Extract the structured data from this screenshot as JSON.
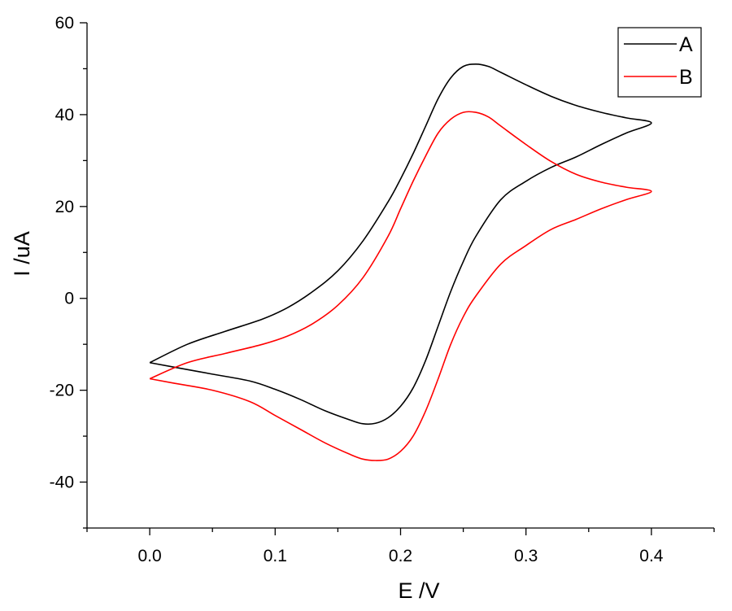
{
  "chart_data": {
    "type": "line",
    "title": "",
    "xlabel": "E /V",
    "ylabel": "I /uA",
    "xlim": [
      -0.05,
      0.45
    ],
    "ylim": [
      -50,
      60
    ],
    "xticks": [
      0.0,
      0.1,
      0.2,
      0.3,
      0.4
    ],
    "xtick_labels": [
      "0.0",
      "0.1",
      "0.2",
      "0.3",
      "0.4"
    ],
    "yticks": [
      -40,
      -20,
      0,
      20,
      40,
      60
    ],
    "ytick_labels": [
      "-40",
      "-20",
      "0",
      "20",
      "40",
      "60"
    ],
    "grid": false,
    "legend": "top-right",
    "series": [
      {
        "name": "A",
        "color": "#000000",
        "x": [
          0.0,
          0.03,
          0.06,
          0.09,
          0.11,
          0.13,
          0.15,
          0.17,
          0.19,
          0.2,
          0.21,
          0.22,
          0.23,
          0.24,
          0.25,
          0.26,
          0.27,
          0.28,
          0.3,
          0.32,
          0.34,
          0.36,
          0.38,
          0.4,
          0.38,
          0.36,
          0.34,
          0.32,
          0.3,
          0.28,
          0.26,
          0.25,
          0.24,
          0.23,
          0.22,
          0.21,
          0.2,
          0.19,
          0.18,
          0.17,
          0.16,
          0.14,
          0.12,
          0.1,
          0.08,
          0.05,
          0.02,
          0.0
        ],
        "y": [
          -14.0,
          -10.0,
          -7.2,
          -4.5,
          -2.0,
          1.5,
          6.0,
          12.5,
          21.0,
          26.0,
          31.5,
          37.5,
          43.5,
          48.0,
          50.5,
          51.0,
          50.5,
          49.2,
          46.5,
          44.0,
          42.0,
          40.5,
          39.3,
          38.2,
          36.0,
          33.5,
          30.8,
          28.5,
          25.5,
          21.5,
          13.5,
          8.0,
          1.5,
          -6.0,
          -13.5,
          -19.5,
          -23.5,
          -26.0,
          -27.2,
          -27.3,
          -26.5,
          -24.5,
          -22.0,
          -19.8,
          -18.0,
          -16.5,
          -15.0,
          -14.0
        ]
      },
      {
        "name": "B",
        "color": "#ff0000",
        "x": [
          0.0,
          0.03,
          0.06,
          0.09,
          0.11,
          0.13,
          0.15,
          0.17,
          0.19,
          0.2,
          0.21,
          0.22,
          0.23,
          0.24,
          0.25,
          0.26,
          0.27,
          0.28,
          0.3,
          0.32,
          0.34,
          0.36,
          0.38,
          0.4,
          0.38,
          0.36,
          0.34,
          0.32,
          0.3,
          0.28,
          0.26,
          0.25,
          0.24,
          0.23,
          0.22,
          0.21,
          0.2,
          0.19,
          0.18,
          0.17,
          0.16,
          0.14,
          0.12,
          0.1,
          0.08,
          0.05,
          0.02,
          0.0
        ],
        "y": [
          -17.5,
          -14.0,
          -12.0,
          -10.0,
          -8.2,
          -5.5,
          -1.5,
          4.5,
          13.5,
          19.5,
          25.5,
          31.0,
          36.0,
          39.0,
          40.5,
          40.5,
          39.5,
          37.5,
          33.5,
          29.8,
          27.0,
          25.3,
          24.2,
          23.3,
          21.5,
          19.5,
          17.2,
          15.0,
          11.5,
          7.5,
          0.5,
          -4.0,
          -10.0,
          -17.5,
          -24.5,
          -30.0,
          -33.3,
          -35.0,
          -35.3,
          -35.0,
          -34.0,
          -31.5,
          -28.5,
          -25.5,
          -22.5,
          -20.0,
          -18.5,
          -17.5
        ]
      }
    ]
  }
}
